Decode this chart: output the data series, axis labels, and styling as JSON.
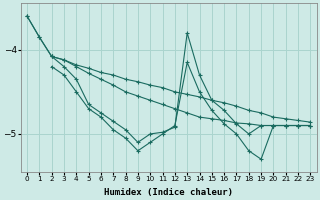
{
  "background_color": "#ceeae6",
  "grid_color": "#aad4ce",
  "line_color": "#1a6b60",
  "xlabel": "Humidex (Indice chaleur)",
  "xlim": [
    -0.5,
    23.5
  ],
  "ylim": [
    -5.45,
    -3.45
  ],
  "yticks": [
    -5,
    -4
  ],
  "xticks": [
    0,
    1,
    2,
    3,
    4,
    5,
    6,
    7,
    8,
    9,
    10,
    11,
    12,
    13,
    14,
    15,
    16,
    17,
    18,
    19,
    20,
    21,
    22,
    23
  ],
  "series": [
    {
      "x": [
        0,
        1,
        2,
        3,
        4,
        5,
        6,
        7,
        8,
        9,
        10,
        11,
        12,
        13,
        14,
        15,
        16,
        17,
        18,
        19,
        20,
        21,
        22,
        23
      ],
      "y": [
        -3.6,
        -3.85,
        -4.08,
        -4.12,
        -4.18,
        -4.22,
        -4.27,
        -4.3,
        -4.35,
        -4.38,
        -4.42,
        -4.45,
        -4.5,
        -4.53,
        -4.56,
        -4.6,
        -4.63,
        -4.67,
        -4.72,
        -4.75,
        -4.8,
        -4.82,
        -4.84,
        -4.86
      ]
    },
    {
      "x": [
        2,
        3,
        4,
        5,
        6,
        7,
        8,
        9,
        10,
        11,
        12,
        13,
        14,
        15,
        16,
        17,
        18,
        19,
        20,
        21,
        22,
        23
      ],
      "y": [
        -4.08,
        -4.12,
        -4.2,
        -4.28,
        -4.35,
        -4.42,
        -4.5,
        -4.55,
        -4.6,
        -4.65,
        -4.7,
        -4.75,
        -4.8,
        -4.82,
        -4.84,
        -4.87,
        -4.88,
        -4.9,
        -4.9,
        -4.9,
        -4.9,
        -4.9
      ]
    },
    {
      "x": [
        0,
        1,
        2,
        3,
        4,
        5,
        6,
        7,
        8,
        9,
        10,
        11,
        12,
        13,
        14,
        15,
        16,
        17,
        18,
        19,
        20,
        21,
        22,
        23
      ],
      "y": [
        -3.6,
        -3.85,
        -4.08,
        -4.2,
        -4.35,
        -4.65,
        -4.75,
        -4.85,
        -4.95,
        -5.1,
        -5.0,
        -4.98,
        -4.92,
        -3.8,
        -4.3,
        -4.6,
        -4.72,
        -4.88,
        -5.0,
        -4.9,
        -4.9,
        -4.9,
        -4.9,
        -4.9
      ]
    },
    {
      "x": [
        2,
        3,
        4,
        5,
        6,
        7,
        8,
        9,
        10,
        11,
        12,
        13,
        14,
        15,
        16,
        17,
        18,
        19,
        20,
        21,
        22,
        23
      ],
      "y": [
        -4.2,
        -4.3,
        -4.5,
        -4.7,
        -4.8,
        -4.95,
        -5.05,
        -5.2,
        -5.1,
        -5.0,
        -4.9,
        -4.15,
        -4.5,
        -4.72,
        -4.88,
        -5.0,
        -5.2,
        -5.3,
        -4.9,
        -4.9,
        -4.9,
        -4.9
      ]
    }
  ]
}
